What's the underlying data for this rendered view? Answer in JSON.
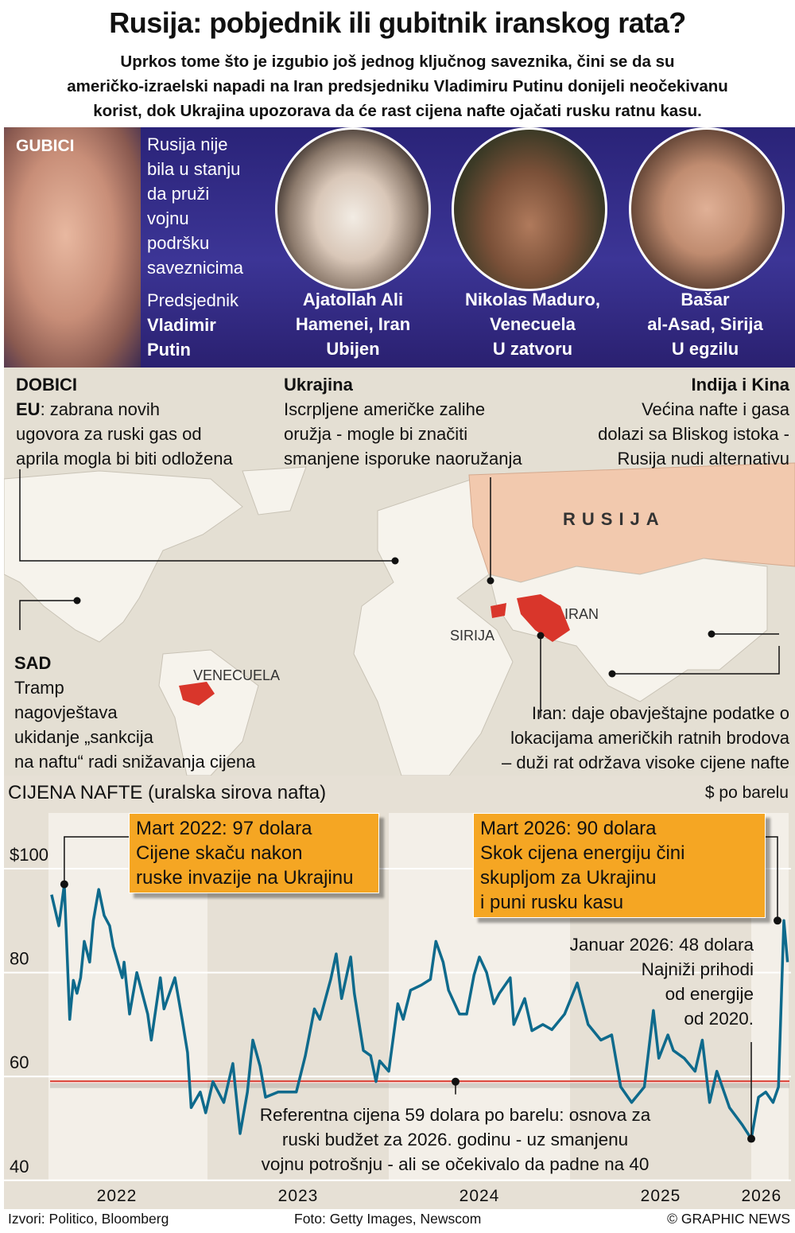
{
  "header": {
    "title": "Rusija: pobjednik ili gubitnik iranskog rata?",
    "subtitle": [
      "Uprkos tome što je izgubio još jednog ključnog saveznika, čini se da su",
      "američko-izraelski napadi na Iran predsjedniku Vladimiru Putinu donijeli neočekivanu",
      "korist, dok Ukrajina upozorava da će rast cijena nafte ojačati rusku ratnu kasu."
    ]
  },
  "losses": {
    "label": "GUBICI",
    "text": [
      "Rusija nije",
      "bila u stanju",
      "da pruži",
      "vojnu",
      "podršku",
      "saveznicima"
    ],
    "putin": {
      "line1": "Predsjednik",
      "line2": "Vladimir",
      "line3": "Putin"
    },
    "people": [
      {
        "lines": [
          "Ajatollah Ali",
          "Hamenei, Iran",
          "Ubijen"
        ]
      },
      {
        "lines": [
          "Nikolas Maduro,",
          "Venecuela",
          "U zatvoru"
        ]
      },
      {
        "lines": [
          "Bašar",
          "al-Asad, Sirija",
          "U egzilu"
        ]
      }
    ]
  },
  "gains": {
    "label": "DOBICI",
    "eu": {
      "bold": "EU",
      "text": ": zabrana novih",
      "lines": [
        "ugovora za ruski gas od",
        "aprila mogla bi biti odložena"
      ]
    },
    "ukraine": {
      "title": "Ukrajina",
      "lines": [
        "Iscrpljene američke zalihe",
        "oružja - mogle bi značiti",
        "smanjene isporuke naoružanja"
      ]
    },
    "india": {
      "title": "Indija i Kina",
      "lines": [
        "Većina nafte i gasa",
        "dolazi sa Bliskog istoka -",
        "Rusija nudi alternativu"
      ]
    },
    "usa": {
      "title": "SAD",
      "lines": [
        "Tramp",
        "nagovještava",
        "ukidanje „sankcija",
        "na naftu“ radi snižavanja cijena"
      ]
    },
    "iran": {
      "lines": [
        "Iran: daje obavještajne podatke o",
        "lokacijama američkih ratnih brodova",
        "– duži rat održava visoke cijene nafte"
      ]
    },
    "map_labels": {
      "russia": "RUSIJA",
      "iran": "IRAN",
      "syria": "SIRIJA",
      "venezuela": "VENECUELA"
    }
  },
  "colors": {
    "purple": "#2e2780",
    "russia": "#f2c9ae",
    "highlight": "#d9362b",
    "line": "#0e6a8c",
    "orange": "#f5a623",
    "ref": "#d9362b"
  },
  "chart_data": {
    "type": "line",
    "title": "CIJENA NAFTE (uralska sirova nafta)",
    "ylabel": "$ po barelu",
    "ylim": [
      40,
      100
    ],
    "yticks": [
      {
        "v": 100,
        "label": "$100"
      },
      {
        "v": 80,
        "label": "80"
      },
      {
        "v": 60,
        "label": "60"
      },
      {
        "v": 40,
        "label": "40"
      }
    ],
    "xticks": [
      {
        "t": 2022.5,
        "label": "2022"
      },
      {
        "t": 2023.5,
        "label": "2023"
      },
      {
        "t": 2024.5,
        "label": "2024"
      },
      {
        "t": 2025.5,
        "label": "2025"
      },
      {
        "t": 2026.1,
        "label": "2026"
      }
    ],
    "reference": {
      "value": 59,
      "lines": [
        "Referentna cijena 59 dolara po barelu: osnova za",
        "ruski budžet za 2026. godinu - uz smanjenu",
        "vojnu potrošnju - ali se očekivalo da padne na 40"
      ]
    },
    "annotations": [
      {
        "t": 2022.21,
        "v": 97,
        "lines": [
          "Mart 2022: 97 dolara",
          "Cijene skaču nakon",
          "ruske invazije na Ukrajinu"
        ]
      },
      {
        "t": 2026.18,
        "v": 90,
        "lines": [
          "Mart 2026: 90 dolara",
          "Skok cijena energiju čini",
          "skupljom za Ukrajinu",
          "i puni rusku kasu"
        ]
      },
      {
        "t": 2026.0,
        "v": 48,
        "lines": [
          "Januar 2026: 48 dolara",
          "Najniži prihodi",
          "od energije",
          "od 2020."
        ]
      }
    ],
    "series": [
      {
        "name": "Urals",
        "points": [
          [
            2022.14,
            95
          ],
          [
            2022.18,
            89
          ],
          [
            2022.21,
            97
          ],
          [
            2022.24,
            71
          ],
          [
            2022.26,
            78.5
          ],
          [
            2022.28,
            76
          ],
          [
            2022.3,
            79
          ],
          [
            2022.32,
            86
          ],
          [
            2022.35,
            82
          ],
          [
            2022.37,
            90
          ],
          [
            2022.4,
            96
          ],
          [
            2022.43,
            91
          ],
          [
            2022.46,
            89
          ],
          [
            2022.48,
            85
          ],
          [
            2022.53,
            79
          ],
          [
            2022.54,
            82
          ],
          [
            2022.57,
            72
          ],
          [
            2022.61,
            80
          ],
          [
            2022.67,
            72
          ],
          [
            2022.69,
            67
          ],
          [
            2022.74,
            79
          ],
          [
            2022.76,
            73
          ],
          [
            2022.82,
            79
          ],
          [
            2022.86,
            71
          ],
          [
            2022.89,
            64.6
          ],
          [
            2022.91,
            54
          ],
          [
            2022.96,
            57
          ],
          [
            2022.99,
            53
          ],
          [
            2023.03,
            59
          ],
          [
            2023.09,
            55
          ],
          [
            2023.14,
            62.5
          ],
          [
            2023.18,
            49
          ],
          [
            2023.22,
            57
          ],
          [
            2023.25,
            67
          ],
          [
            2023.29,
            62
          ],
          [
            2023.32,
            56
          ],
          [
            2023.39,
            57
          ],
          [
            2023.45,
            57
          ],
          [
            2023.49,
            57
          ],
          [
            2023.54,
            64
          ],
          [
            2023.59,
            73
          ],
          [
            2023.62,
            71
          ],
          [
            2023.68,
            78.7
          ],
          [
            2023.71,
            83.6
          ],
          [
            2023.74,
            75
          ],
          [
            2023.79,
            83
          ],
          [
            2023.81,
            76
          ],
          [
            2023.86,
            65
          ],
          [
            2023.9,
            64
          ],
          [
            2023.93,
            59
          ],
          [
            2023.95,
            63
          ],
          [
            2024.0,
            61
          ],
          [
            2024.05,
            74
          ],
          [
            2024.08,
            71
          ],
          [
            2024.12,
            76.6
          ],
          [
            2024.18,
            77.6
          ],
          [
            2024.23,
            78.7
          ],
          [
            2024.26,
            86
          ],
          [
            2024.3,
            82
          ],
          [
            2024.33,
            76.6
          ],
          [
            2024.39,
            72
          ],
          [
            2024.43,
            72
          ],
          [
            2024.47,
            79.5
          ],
          [
            2024.5,
            83
          ],
          [
            2024.54,
            80
          ],
          [
            2024.58,
            74
          ],
          [
            2024.61,
            76
          ],
          [
            2024.67,
            79
          ],
          [
            2024.69,
            70
          ],
          [
            2024.75,
            75
          ],
          [
            2024.79,
            68.8
          ],
          [
            2024.85,
            70
          ],
          [
            2024.9,
            69
          ],
          [
            2024.97,
            72
          ],
          [
            2025.04,
            78
          ],
          [
            2025.1,
            70
          ],
          [
            2025.17,
            67
          ],
          [
            2025.23,
            68
          ],
          [
            2025.28,
            58
          ],
          [
            2025.34,
            55
          ],
          [
            2025.41,
            58
          ],
          [
            2025.46,
            72.7
          ],
          [
            2025.49,
            63.5
          ],
          [
            2025.54,
            68
          ],
          [
            2025.57,
            65
          ],
          [
            2025.63,
            63.5
          ],
          [
            2025.69,
            61
          ],
          [
            2025.73,
            67
          ],
          [
            2025.77,
            55
          ],
          [
            2025.81,
            61
          ],
          [
            2025.88,
            54
          ],
          [
            2025.95,
            50.7
          ],
          [
            2026.0,
            48
          ],
          [
            2026.04,
            56
          ],
          [
            2026.08,
            57
          ],
          [
            2026.12,
            55
          ],
          [
            2026.15,
            58
          ],
          [
            2026.18,
            90
          ],
          [
            2026.2,
            82
          ]
        ]
      }
    ]
  },
  "footer": {
    "sources": "Izvori: Politico, Bloomberg",
    "photo": "Foto: Getty Images, Newscom",
    "credit": "© GRAPHIC NEWS"
  }
}
